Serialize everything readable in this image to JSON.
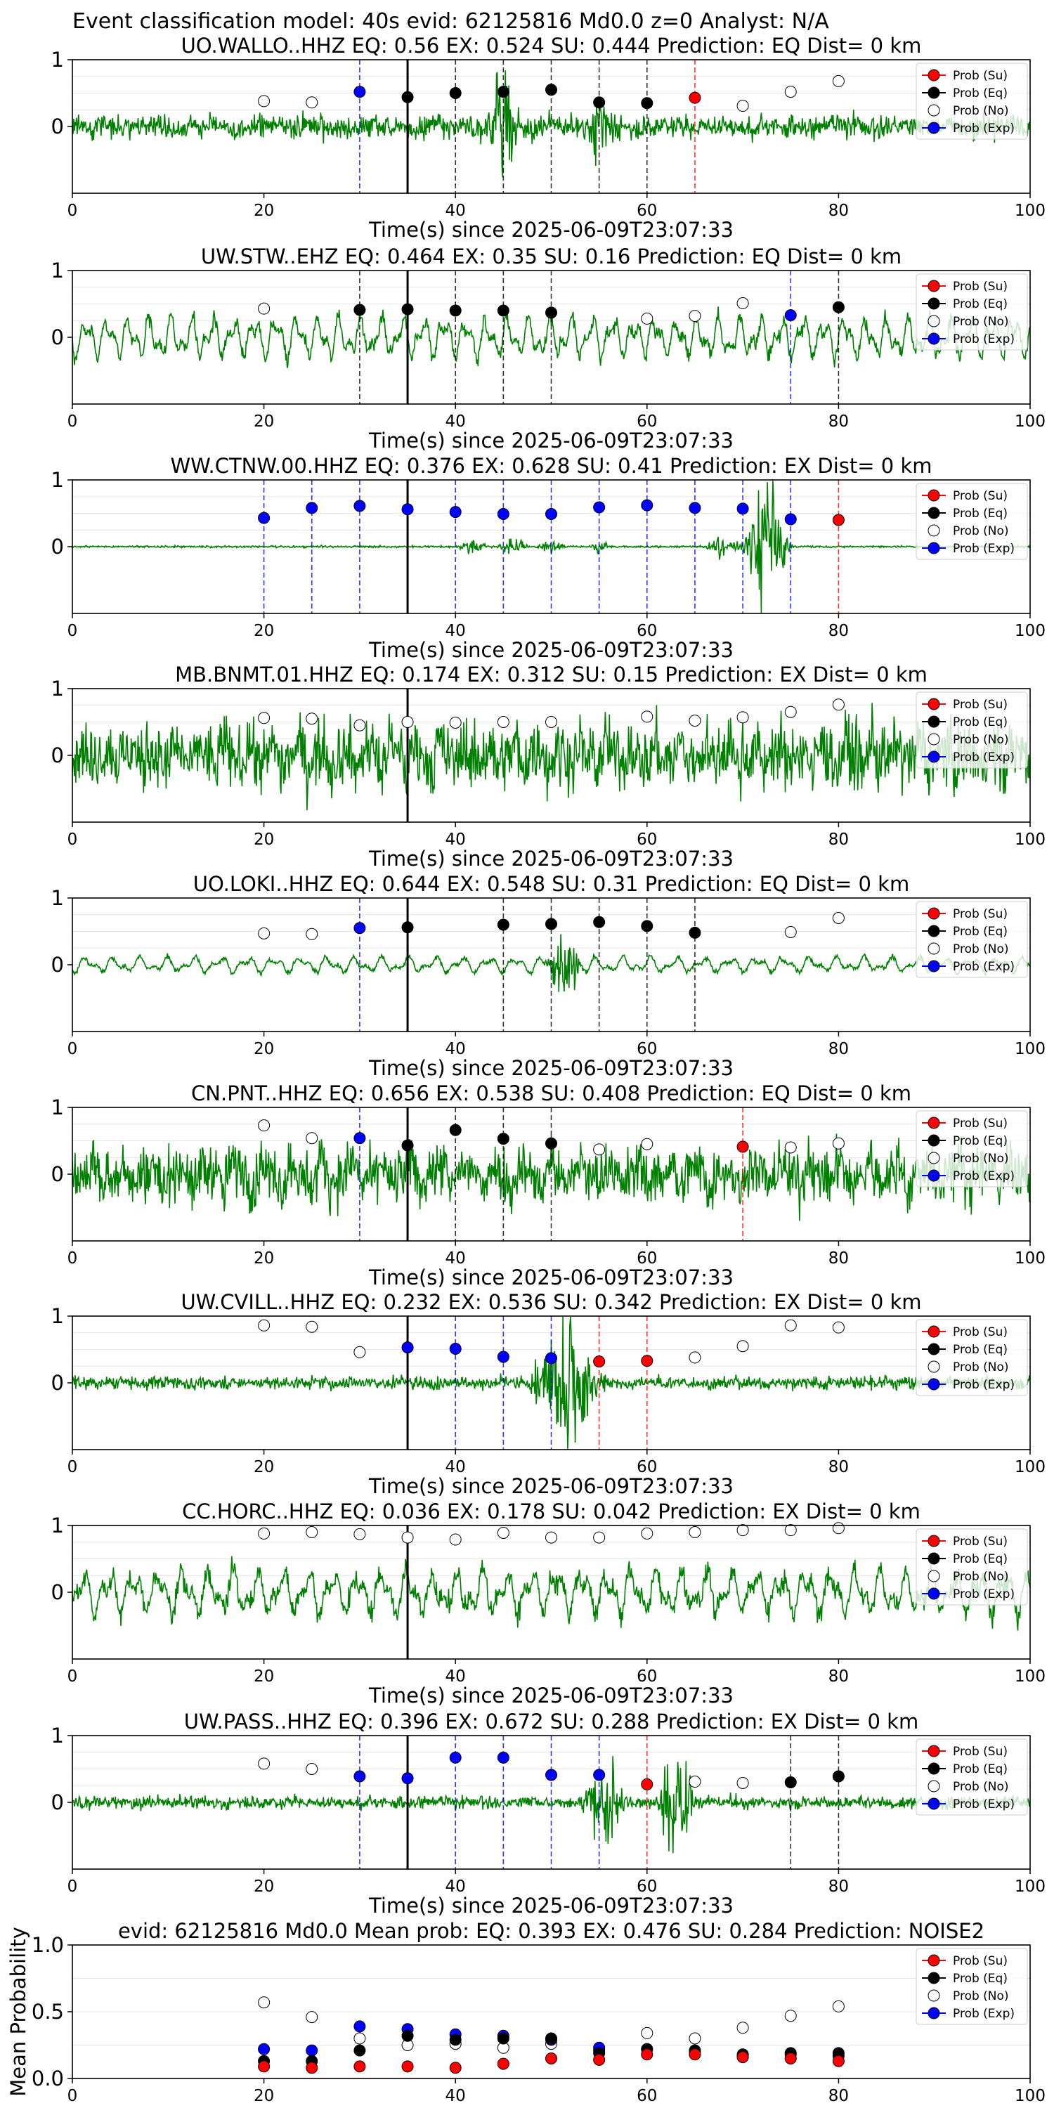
{
  "figure": {
    "suptitle": "Event classification model: 40s evid: 62125816 Md0.0 z=0 Analyst: N/A",
    "x_axis_label": "Time(s) since 2025-06-09T23:07:33",
    "x_ticks": [
      0,
      20,
      40,
      60,
      80,
      100
    ],
    "xlim": [
      0,
      100
    ],
    "legend": [
      "Prob (Su)",
      "Prob (Eq)",
      "Prob (No)",
      "Prob (Exp)"
    ],
    "colors": {
      "su": "#ff0000",
      "eq": "#000000",
      "no": "#ffffff",
      "exp": "#0000ff",
      "trace": "#008000"
    }
  },
  "chart_data": [
    {
      "type": "line",
      "title": "UO.WALLO..HHZ   EQ: 0.56  EX: 0.524  SU: 0.444   Prediction: EQ    Dist= 0 km",
      "y_ticks": [
        "1",
        "0"
      ],
      "grid": true,
      "legend_placement": "top-right",
      "pick_line": 35,
      "points": [
        {
          "t": 20,
          "p": 0.38,
          "c": "no"
        },
        {
          "t": 25,
          "p": 0.36,
          "c": "no"
        },
        {
          "t": 30,
          "p": 0.52,
          "c": "exp"
        },
        {
          "t": 35,
          "p": 0.44,
          "c": "eq"
        },
        {
          "t": 40,
          "p": 0.5,
          "c": "eq"
        },
        {
          "t": 45,
          "p": 0.52,
          "c": "eq"
        },
        {
          "t": 50,
          "p": 0.55,
          "c": "eq"
        },
        {
          "t": 55,
          "p": 0.36,
          "c": "eq"
        },
        {
          "t": 60,
          "p": 0.35,
          "c": "eq"
        },
        {
          "t": 65,
          "p": 0.43,
          "c": "su"
        },
        {
          "t": 70,
          "p": 0.31,
          "c": "no"
        },
        {
          "t": 75,
          "p": 0.52,
          "c": "no"
        },
        {
          "t": 80,
          "p": 0.68,
          "c": "no"
        }
      ]
    },
    {
      "type": "line",
      "title": "UW.STW..EHZ   EQ: 0.464  EX: 0.35  SU: 0.16   Prediction: EQ    Dist= 0 km",
      "y_ticks": [
        "1",
        "0"
      ],
      "grid": true,
      "legend_placement": "top-right",
      "pick_line": 35,
      "points": [
        {
          "t": 20,
          "p": 0.43,
          "c": "no"
        },
        {
          "t": 30,
          "p": 0.41,
          "c": "eq"
        },
        {
          "t": 35,
          "p": 0.42,
          "c": "eq"
        },
        {
          "t": 40,
          "p": 0.4,
          "c": "eq"
        },
        {
          "t": 45,
          "p": 0.4,
          "c": "eq"
        },
        {
          "t": 50,
          "p": 0.37,
          "c": "eq"
        },
        {
          "t": 60,
          "p": 0.28,
          "c": "no"
        },
        {
          "t": 65,
          "p": 0.32,
          "c": "no"
        },
        {
          "t": 70,
          "p": 0.51,
          "c": "no"
        },
        {
          "t": 75,
          "p": 0.33,
          "c": "exp"
        },
        {
          "t": 80,
          "p": 0.45,
          "c": "eq"
        }
      ]
    },
    {
      "type": "line",
      "title": "WW.CTNW.00.HHZ   EQ: 0.376  EX: 0.628  SU: 0.41   Prediction: EX    Dist= 0 km",
      "y_ticks": [
        "1",
        "0"
      ],
      "grid": true,
      "legend_placement": "top-right",
      "pick_line": 35,
      "points": [
        {
          "t": 20,
          "p": 0.43,
          "c": "exp"
        },
        {
          "t": 25,
          "p": 0.58,
          "c": "exp"
        },
        {
          "t": 30,
          "p": 0.61,
          "c": "exp"
        },
        {
          "t": 35,
          "p": 0.56,
          "c": "exp"
        },
        {
          "t": 40,
          "p": 0.52,
          "c": "exp"
        },
        {
          "t": 45,
          "p": 0.49,
          "c": "exp"
        },
        {
          "t": 50,
          "p": 0.49,
          "c": "exp"
        },
        {
          "t": 55,
          "p": 0.59,
          "c": "exp"
        },
        {
          "t": 60,
          "p": 0.62,
          "c": "exp"
        },
        {
          "t": 65,
          "p": 0.58,
          "c": "exp"
        },
        {
          "t": 70,
          "p": 0.57,
          "c": "exp"
        },
        {
          "t": 75,
          "p": 0.41,
          "c": "exp"
        },
        {
          "t": 80,
          "p": 0.4,
          "c": "su"
        }
      ]
    },
    {
      "type": "line",
      "title": "MB.BNMT.01.HHZ   EQ: 0.174  EX: 0.312  SU: 0.15   Prediction: EX    Dist= 0 km",
      "y_ticks": [
        "1",
        "0"
      ],
      "grid": true,
      "legend_placement": "top-right",
      "pick_line": 35,
      "points": [
        {
          "t": 20,
          "p": 0.56,
          "c": "no"
        },
        {
          "t": 25,
          "p": 0.55,
          "c": "no"
        },
        {
          "t": 30,
          "p": 0.45,
          "c": "no"
        },
        {
          "t": 35,
          "p": 0.5,
          "c": "no"
        },
        {
          "t": 40,
          "p": 0.49,
          "c": "no"
        },
        {
          "t": 45,
          "p": 0.5,
          "c": "no"
        },
        {
          "t": 50,
          "p": 0.5,
          "c": "no"
        },
        {
          "t": 60,
          "p": 0.58,
          "c": "no"
        },
        {
          "t": 65,
          "p": 0.52,
          "c": "no"
        },
        {
          "t": 70,
          "p": 0.57,
          "c": "no"
        },
        {
          "t": 75,
          "p": 0.65,
          "c": "no"
        },
        {
          "t": 80,
          "p": 0.76,
          "c": "no"
        }
      ]
    },
    {
      "type": "line",
      "title": "UO.LOKI..HHZ   EQ: 0.644  EX: 0.548  SU: 0.31   Prediction: EQ    Dist= 0 km",
      "y_ticks": [
        "1",
        "0"
      ],
      "grid": true,
      "legend_placement": "top-right",
      "pick_line": 35,
      "points": [
        {
          "t": 20,
          "p": 0.47,
          "c": "no"
        },
        {
          "t": 25,
          "p": 0.46,
          "c": "no"
        },
        {
          "t": 30,
          "p": 0.55,
          "c": "exp"
        },
        {
          "t": 35,
          "p": 0.56,
          "c": "eq"
        },
        {
          "t": 45,
          "p": 0.6,
          "c": "eq"
        },
        {
          "t": 50,
          "p": 0.61,
          "c": "eq"
        },
        {
          "t": 55,
          "p": 0.64,
          "c": "eq"
        },
        {
          "t": 60,
          "p": 0.58,
          "c": "eq"
        },
        {
          "t": 65,
          "p": 0.48,
          "c": "eq"
        },
        {
          "t": 75,
          "p": 0.49,
          "c": "no"
        },
        {
          "t": 80,
          "p": 0.7,
          "c": "no"
        }
      ]
    },
    {
      "type": "line",
      "title": "CN.PNT..HHZ   EQ: 0.656  EX: 0.538  SU: 0.408   Prediction: EQ    Dist= 0 km",
      "y_ticks": [
        "1",
        "0"
      ],
      "grid": true,
      "legend_placement": "top-right",
      "pick_line": 35,
      "points": [
        {
          "t": 20,
          "p": 0.73,
          "c": "no"
        },
        {
          "t": 25,
          "p": 0.54,
          "c": "no"
        },
        {
          "t": 30,
          "p": 0.54,
          "c": "exp"
        },
        {
          "t": 35,
          "p": 0.43,
          "c": "eq"
        },
        {
          "t": 40,
          "p": 0.66,
          "c": "eq"
        },
        {
          "t": 45,
          "p": 0.53,
          "c": "eq"
        },
        {
          "t": 50,
          "p": 0.46,
          "c": "eq"
        },
        {
          "t": 55,
          "p": 0.37,
          "c": "no"
        },
        {
          "t": 60,
          "p": 0.45,
          "c": "no"
        },
        {
          "t": 70,
          "p": 0.41,
          "c": "su"
        },
        {
          "t": 75,
          "p": 0.4,
          "c": "no"
        },
        {
          "t": 80,
          "p": 0.46,
          "c": "no"
        }
      ]
    },
    {
      "type": "line",
      "title": "UW.CVILL..HHZ   EQ: 0.232  EX: 0.536  SU: 0.342   Prediction: EX    Dist= 0 km",
      "y_ticks": [
        "1",
        "0"
      ],
      "grid": true,
      "legend_placement": "top-right",
      "pick_line": 35,
      "points": [
        {
          "t": 20,
          "p": 0.86,
          "c": "no"
        },
        {
          "t": 25,
          "p": 0.84,
          "c": "no"
        },
        {
          "t": 30,
          "p": 0.46,
          "c": "no"
        },
        {
          "t": 35,
          "p": 0.53,
          "c": "exp"
        },
        {
          "t": 40,
          "p": 0.51,
          "c": "exp"
        },
        {
          "t": 45,
          "p": 0.39,
          "c": "exp"
        },
        {
          "t": 50,
          "p": 0.37,
          "c": "exp"
        },
        {
          "t": 55,
          "p": 0.32,
          "c": "su"
        },
        {
          "t": 60,
          "p": 0.33,
          "c": "su"
        },
        {
          "t": 65,
          "p": 0.38,
          "c": "no"
        },
        {
          "t": 70,
          "p": 0.55,
          "c": "no"
        },
        {
          "t": 75,
          "p": 0.86,
          "c": "no"
        },
        {
          "t": 80,
          "p": 0.83,
          "c": "no"
        }
      ]
    },
    {
      "type": "line",
      "title": "CC.HORC..HHZ   EQ: 0.036  EX: 0.178  SU: 0.042   Prediction: EX    Dist= 0 km",
      "y_ticks": [
        "1",
        "0"
      ],
      "grid": true,
      "legend_placement": "top-right",
      "pick_line": 35,
      "points": [
        {
          "t": 20,
          "p": 0.88,
          "c": "no"
        },
        {
          "t": 25,
          "p": 0.9,
          "c": "no"
        },
        {
          "t": 30,
          "p": 0.87,
          "c": "no"
        },
        {
          "t": 35,
          "p": 0.82,
          "c": "no"
        },
        {
          "t": 40,
          "p": 0.79,
          "c": "no"
        },
        {
          "t": 45,
          "p": 0.89,
          "c": "no"
        },
        {
          "t": 50,
          "p": 0.82,
          "c": "no"
        },
        {
          "t": 55,
          "p": 0.82,
          "c": "no"
        },
        {
          "t": 60,
          "p": 0.88,
          "c": "no"
        },
        {
          "t": 65,
          "p": 0.9,
          "c": "no"
        },
        {
          "t": 70,
          "p": 0.93,
          "c": "no"
        },
        {
          "t": 75,
          "p": 0.93,
          "c": "no"
        },
        {
          "t": 80,
          "p": 0.96,
          "c": "no"
        }
      ]
    },
    {
      "type": "line",
      "title": "UW.PASS..HHZ   EQ: 0.396  EX: 0.672  SU: 0.288   Prediction: EX    Dist= 0 km",
      "y_ticks": [
        "1",
        "0"
      ],
      "grid": true,
      "legend_placement": "top-right",
      "pick_line": 35,
      "points": [
        {
          "t": 20,
          "p": 0.58,
          "c": "no"
        },
        {
          "t": 25,
          "p": 0.5,
          "c": "no"
        },
        {
          "t": 30,
          "p": 0.39,
          "c": "exp"
        },
        {
          "t": 35,
          "p": 0.36,
          "c": "exp"
        },
        {
          "t": 40,
          "p": 0.67,
          "c": "exp"
        },
        {
          "t": 45,
          "p": 0.67,
          "c": "exp"
        },
        {
          "t": 50,
          "p": 0.41,
          "c": "exp"
        },
        {
          "t": 55,
          "p": 0.41,
          "c": "exp"
        },
        {
          "t": 60,
          "p": 0.27,
          "c": "su"
        },
        {
          "t": 65,
          "p": 0.31,
          "c": "no"
        },
        {
          "t": 70,
          "p": 0.29,
          "c": "no"
        },
        {
          "t": 75,
          "p": 0.3,
          "c": "eq"
        },
        {
          "t": 80,
          "p": 0.39,
          "c": "eq"
        }
      ]
    },
    {
      "type": "scatter",
      "title": "evid: 62125816  Md0.0   Mean prob:    EQ: 0.393  EX: 0.476  SU: 0.284    Prediction: NOISE2",
      "ylabel": "Mean Probability",
      "y_ticks": [
        "1.0",
        "0.5",
        "0.0"
      ],
      "ylim": [
        0,
        1
      ],
      "grid": true,
      "legend_placement": "top-right",
      "x": [
        20,
        25,
        30,
        35,
        40,
        45,
        50,
        55,
        60,
        65,
        70,
        75,
        80
      ],
      "series": [
        {
          "name": "Prob (No)",
          "values": [
            0.57,
            0.46,
            0.3,
            0.25,
            0.26,
            0.23,
            0.26,
            0.21,
            0.34,
            0.3,
            0.38,
            0.47,
            0.54
          ]
        },
        {
          "name": "Prob (Exp)",
          "values": [
            0.22,
            0.21,
            0.39,
            0.37,
            0.33,
            0.32,
            0.29,
            0.23,
            0.22,
            0.2,
            0.17,
            0.18,
            0.17
          ]
        },
        {
          "name": "Prob (Eq)",
          "values": [
            0.13,
            0.13,
            0.21,
            0.32,
            0.29,
            0.3,
            0.3,
            0.19,
            0.22,
            0.21,
            0.18,
            0.19,
            0.19
          ]
        },
        {
          "name": "Prob (Su)",
          "values": [
            0.09,
            0.08,
            0.09,
            0.09,
            0.08,
            0.11,
            0.15,
            0.14,
            0.18,
            0.18,
            0.16,
            0.15,
            0.13
          ]
        }
      ]
    }
  ]
}
